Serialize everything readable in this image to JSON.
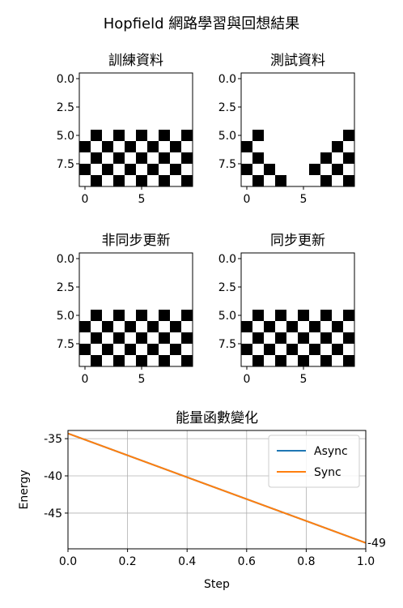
{
  "figure": {
    "title": "Hopfield 網路學習與回想結果"
  },
  "grids": [
    {
      "title": "訓練資料",
      "yticks": [
        "0.0",
        "2.5",
        "5.0",
        "7.5"
      ],
      "xticks": [
        "0",
        "5"
      ],
      "cells": [
        [
          0,
          0,
          0,
          0,
          0,
          0,
          0,
          0,
          0,
          0
        ],
        [
          0,
          0,
          0,
          0,
          0,
          0,
          0,
          0,
          0,
          0
        ],
        [
          0,
          0,
          0,
          0,
          0,
          0,
          0,
          0,
          0,
          0
        ],
        [
          0,
          0,
          0,
          0,
          0,
          0,
          0,
          0,
          0,
          0
        ],
        [
          0,
          0,
          0,
          0,
          0,
          0,
          0,
          0,
          0,
          0
        ],
        [
          0,
          1,
          0,
          1,
          0,
          1,
          0,
          1,
          0,
          1
        ],
        [
          1,
          0,
          1,
          0,
          1,
          0,
          1,
          0,
          1,
          0
        ],
        [
          0,
          1,
          0,
          1,
          0,
          1,
          0,
          1,
          0,
          1
        ],
        [
          1,
          0,
          1,
          0,
          1,
          0,
          1,
          0,
          1,
          0
        ],
        [
          0,
          1,
          0,
          1,
          0,
          1,
          0,
          1,
          0,
          1
        ]
      ]
    },
    {
      "title": "測試資料",
      "yticks": [
        "0.0",
        "2.5",
        "5.0",
        "7.5"
      ],
      "xticks": [
        "0",
        "5"
      ],
      "cells": [
        [
          0,
          0,
          0,
          0,
          0,
          0,
          0,
          0,
          0,
          0
        ],
        [
          0,
          0,
          0,
          0,
          0,
          0,
          0,
          0,
          0,
          0
        ],
        [
          0,
          0,
          0,
          0,
          0,
          0,
          0,
          0,
          0,
          0
        ],
        [
          0,
          0,
          0,
          0,
          0,
          0,
          0,
          0,
          0,
          0
        ],
        [
          0,
          0,
          0,
          0,
          0,
          0,
          0,
          0,
          0,
          0
        ],
        [
          0,
          1,
          0,
          0,
          0,
          0,
          0,
          0,
          0,
          1
        ],
        [
          1,
          0,
          0,
          0,
          0,
          0,
          0,
          0,
          1,
          0
        ],
        [
          0,
          1,
          0,
          0,
          0,
          0,
          0,
          1,
          0,
          1
        ],
        [
          1,
          0,
          1,
          0,
          0,
          0,
          1,
          0,
          1,
          0
        ],
        [
          0,
          1,
          0,
          1,
          0,
          0,
          0,
          1,
          0,
          1
        ]
      ]
    },
    {
      "title": "非同步更新",
      "yticks": [
        "0.0",
        "2.5",
        "5.0",
        "7.5"
      ],
      "xticks": [
        "0",
        "5"
      ],
      "cells": [
        [
          0,
          0,
          0,
          0,
          0,
          0,
          0,
          0,
          0,
          0
        ],
        [
          0,
          0,
          0,
          0,
          0,
          0,
          0,
          0,
          0,
          0
        ],
        [
          0,
          0,
          0,
          0,
          0,
          0,
          0,
          0,
          0,
          0
        ],
        [
          0,
          0,
          0,
          0,
          0,
          0,
          0,
          0,
          0,
          0
        ],
        [
          0,
          0,
          0,
          0,
          0,
          0,
          0,
          0,
          0,
          0
        ],
        [
          0,
          1,
          0,
          1,
          0,
          1,
          0,
          1,
          0,
          1
        ],
        [
          1,
          0,
          1,
          0,
          1,
          0,
          1,
          0,
          1,
          0
        ],
        [
          0,
          1,
          0,
          1,
          0,
          1,
          0,
          1,
          0,
          1
        ],
        [
          1,
          0,
          1,
          0,
          1,
          0,
          1,
          0,
          1,
          0
        ],
        [
          0,
          1,
          0,
          1,
          0,
          1,
          0,
          1,
          0,
          1
        ]
      ]
    },
    {
      "title": "同步更新",
      "yticks": [
        "0.0",
        "2.5",
        "5.0",
        "7.5"
      ],
      "xticks": [
        "0",
        "5"
      ],
      "cells": [
        [
          0,
          0,
          0,
          0,
          0,
          0,
          0,
          0,
          0,
          0
        ],
        [
          0,
          0,
          0,
          0,
          0,
          0,
          0,
          0,
          0,
          0
        ],
        [
          0,
          0,
          0,
          0,
          0,
          0,
          0,
          0,
          0,
          0
        ],
        [
          0,
          0,
          0,
          0,
          0,
          0,
          0,
          0,
          0,
          0
        ],
        [
          0,
          0,
          0,
          0,
          0,
          0,
          0,
          0,
          0,
          0
        ],
        [
          0,
          1,
          0,
          1,
          0,
          1,
          0,
          1,
          0,
          1
        ],
        [
          1,
          0,
          1,
          0,
          1,
          0,
          1,
          0,
          1,
          0
        ],
        [
          0,
          1,
          0,
          1,
          0,
          1,
          0,
          1,
          0,
          1
        ],
        [
          1,
          0,
          1,
          0,
          1,
          0,
          1,
          0,
          1,
          0
        ],
        [
          0,
          1,
          0,
          1,
          0,
          1,
          0,
          1,
          0,
          1
        ]
      ]
    }
  ],
  "chart_data": {
    "type": "line",
    "title": "能量函數變化",
    "xlabel": "Step",
    "ylabel": "Energy",
    "xlim": [
      0,
      1
    ],
    "ylim": [
      -49.8,
      -33.9
    ],
    "xticks": [
      0.0,
      0.2,
      0.4,
      0.6,
      0.8,
      1.0
    ],
    "xtick_labels": [
      "0.0",
      "0.2",
      "0.4",
      "0.6",
      "0.8",
      "1.0"
    ],
    "yticks": [
      -35,
      -40,
      -45
    ],
    "ytick_labels": [
      "-35",
      "-40",
      "-45"
    ],
    "grid": true,
    "legend_position": "top-right",
    "series": [
      {
        "name": "Async",
        "color": "#1f77b4",
        "x": [
          0,
          1
        ],
        "y": [
          -34.3,
          -49
        ]
      },
      {
        "name": "Sync",
        "color": "#ff7f0e",
        "x": [
          0,
          1
        ],
        "y": [
          -34.3,
          -49
        ]
      }
    ],
    "annotations": [
      {
        "text": "-49",
        "x": 1,
        "y": -49
      }
    ]
  }
}
